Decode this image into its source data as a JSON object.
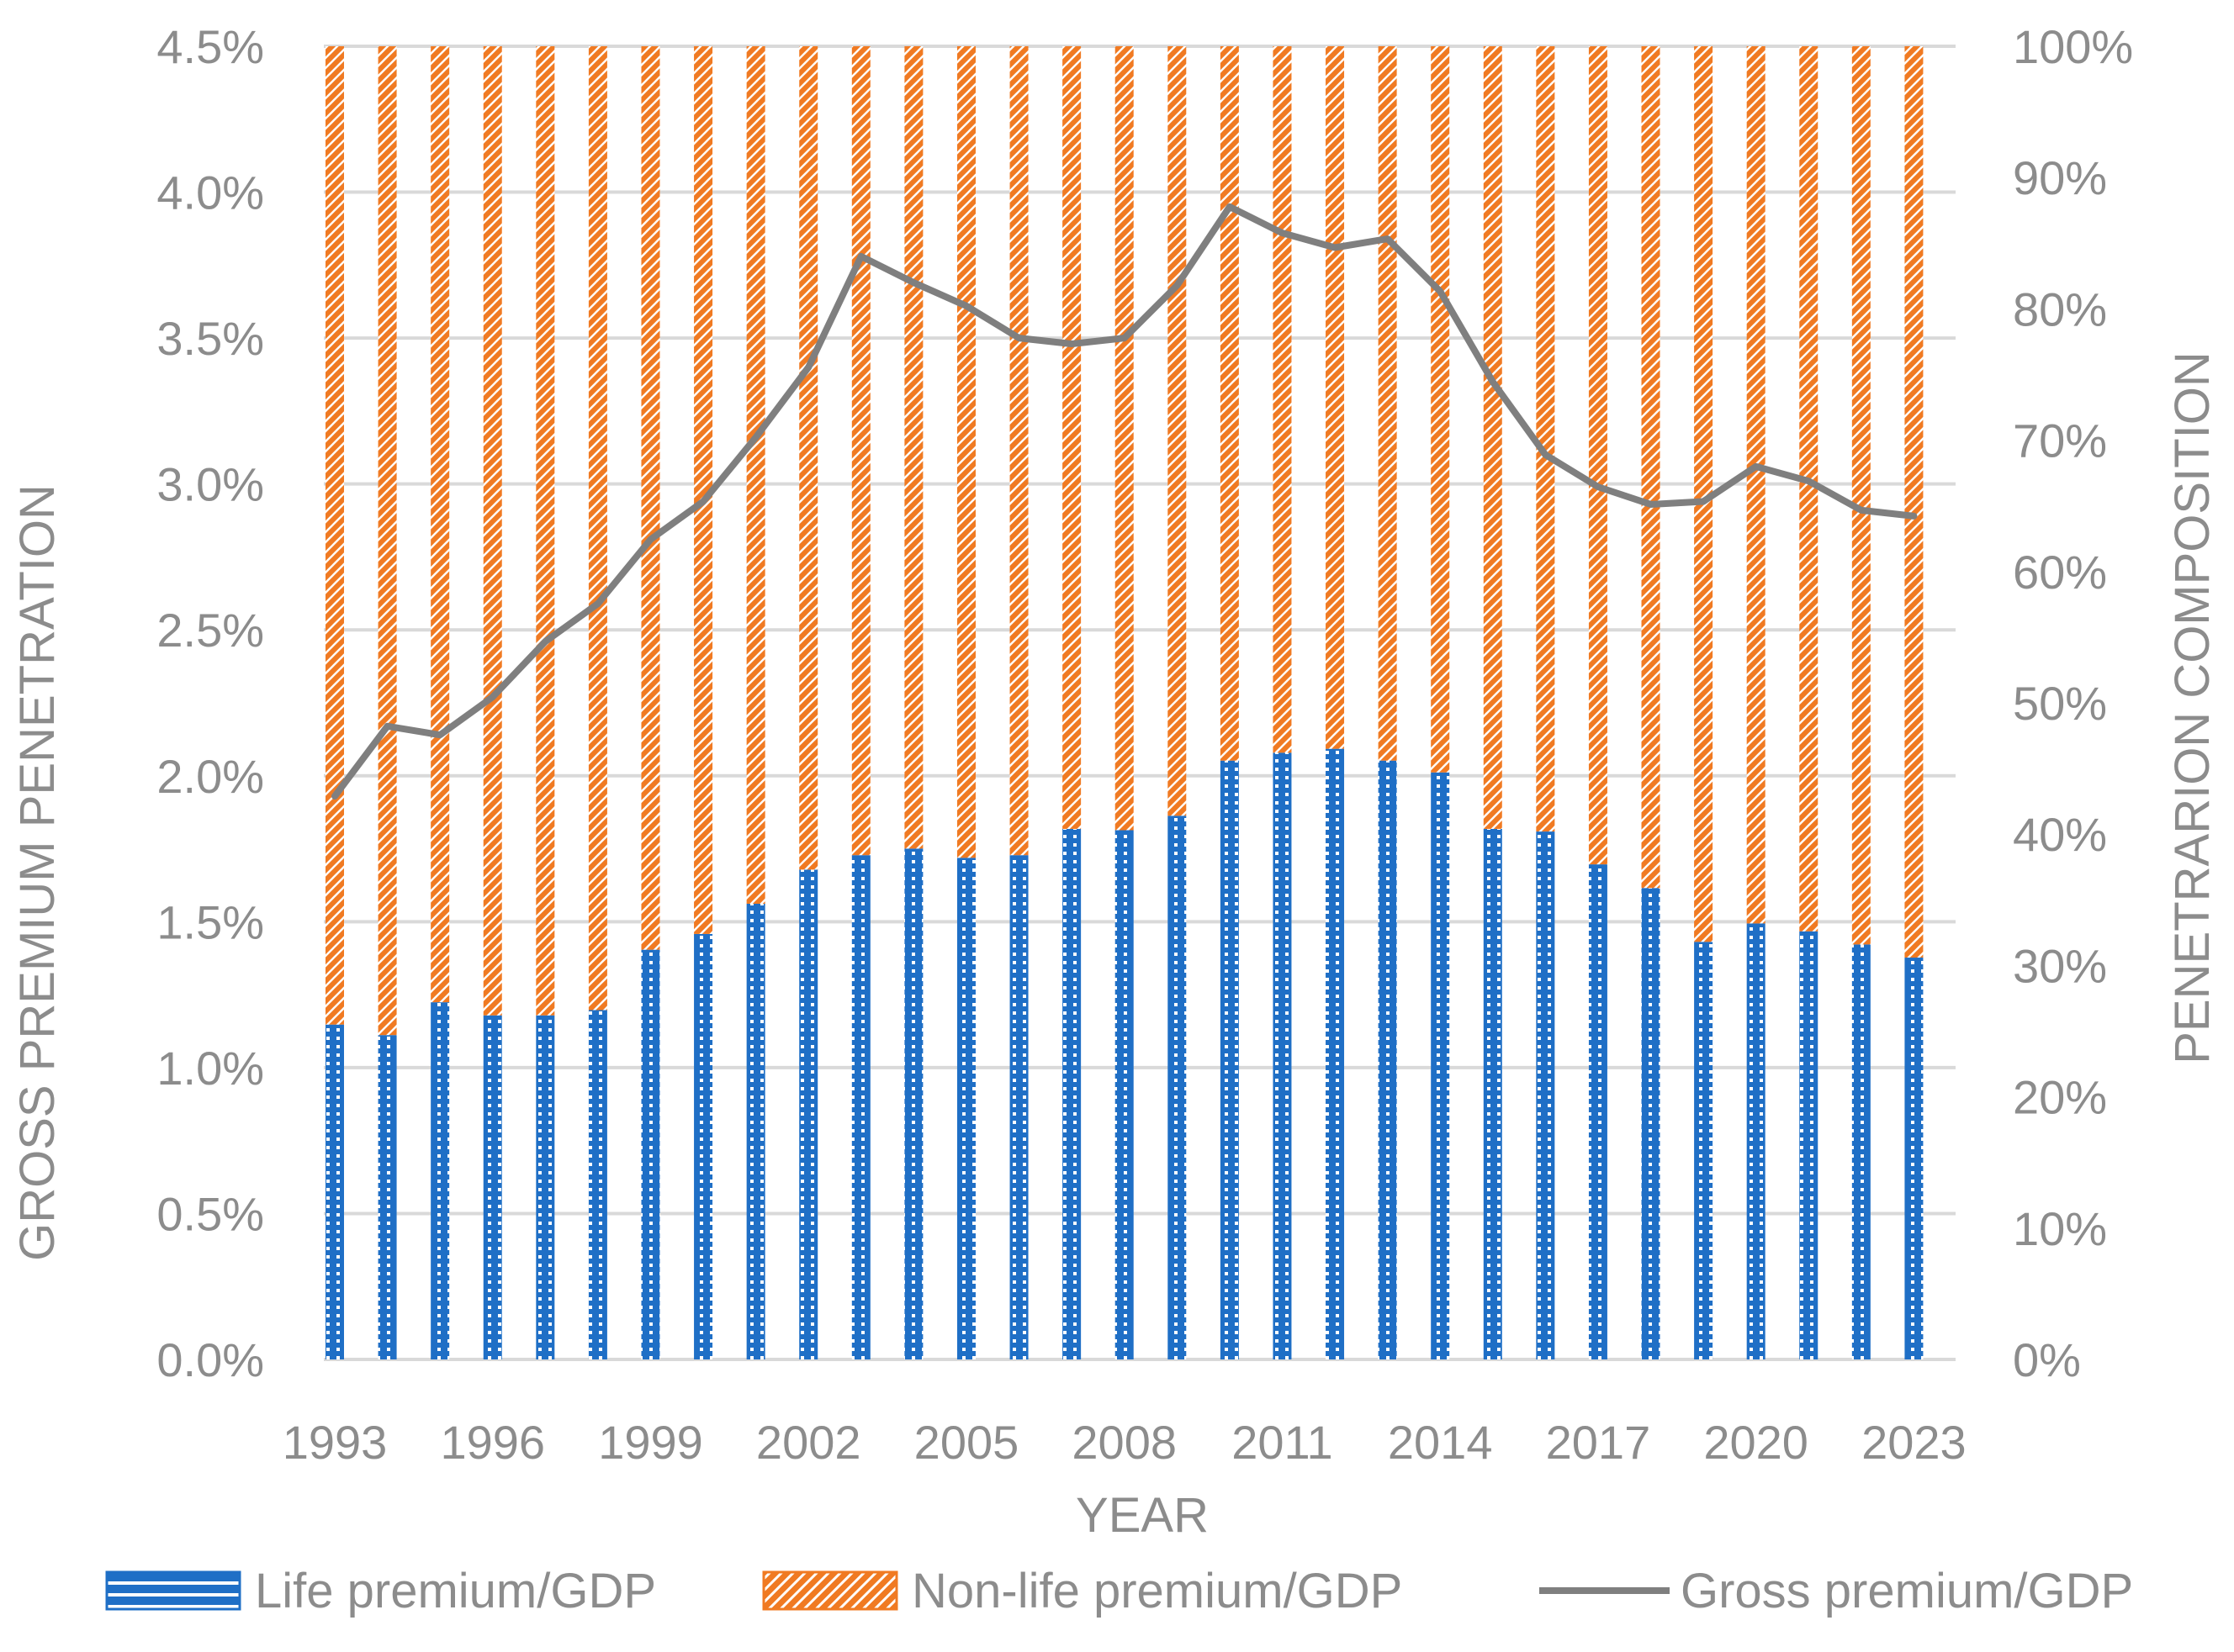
{
  "chart_data": {
    "type": "bar",
    "subtype": "stacked-100-percent-with-line",
    "years": [
      1993,
      1994,
      1995,
      1996,
      1997,
      1998,
      1999,
      2000,
      2001,
      2002,
      2003,
      2004,
      2005,
      2006,
      2007,
      2008,
      2009,
      2010,
      2011,
      2012,
      2013,
      2014,
      2015,
      2016,
      2017,
      2018,
      2019,
      2020,
      2021,
      2022,
      2023
    ],
    "series": [
      {
        "name": "Life premium/GDP",
        "axis": "right",
        "unit": "share of gross premium (%)",
        "values": [
          25.5,
          24.7,
          27.2,
          26.2,
          26.2,
          26.6,
          31.2,
          32.4,
          34.7,
          37.3,
          38.4,
          38.9,
          38.2,
          38.4,
          40.4,
          40.3,
          41.4,
          45.6,
          46.2,
          46.5,
          45.6,
          44.7,
          40.4,
          40.2,
          37.7,
          35.9,
          31.8,
          33.2,
          32.6,
          31.6,
          30.6
        ]
      },
      {
        "name": "Non-life premium/GDP",
        "axis": "right",
        "unit": "share of gross premium (%)",
        "values": [
          74.5,
          75.3,
          72.8,
          73.8,
          73.8,
          73.4,
          68.8,
          67.6,
          65.3,
          62.7,
          61.6,
          61.1,
          61.8,
          61.6,
          59.6,
          59.7,
          58.6,
          54.4,
          53.8,
          53.5,
          54.4,
          55.3,
          59.6,
          59.8,
          62.3,
          64.1,
          68.2,
          66.8,
          67.4,
          68.4,
          69.4
        ]
      },
      {
        "name": "Gross premium/GDP",
        "axis": "left",
        "type": "line",
        "values": [
          1.93,
          2.17,
          2.14,
          2.27,
          2.46,
          2.59,
          2.81,
          2.94,
          3.16,
          3.4,
          3.78,
          3.69,
          3.61,
          3.5,
          3.48,
          3.5,
          3.68,
          3.95,
          3.86,
          3.81,
          3.84,
          3.66,
          3.35,
          3.1,
          2.99,
          2.93,
          2.94,
          3.06,
          3.01,
          2.91,
          2.89
        ]
      }
    ],
    "xlabel": "YEAR",
    "ylabel_left": "GROSS PREMIUM PENETRATION",
    "ylabel_right": "PENETRARION COMPOSITION",
    "ylim_left": [
      0,
      4.5
    ],
    "ylim_right": [
      0,
      100
    ],
    "yticks_left": [
      "0.0%",
      "0.5%",
      "1.0%",
      "1.5%",
      "2.0%",
      "2.5%",
      "3.0%",
      "3.5%",
      "4.0%",
      "4.5%"
    ],
    "yticks_right": [
      "0%",
      "10%",
      "20%",
      "30%",
      "40%",
      "50%",
      "60%",
      "70%",
      "80%",
      "90%",
      "100%"
    ],
    "xtick_labels": [
      "1993",
      "1996",
      "1999",
      "2002",
      "2005",
      "2008",
      "2011",
      "2014",
      "2017",
      "2020",
      "2023"
    ],
    "grid": true,
    "legend": [
      "Life premium/GDP",
      "Non-life premium/GDP",
      "Gross premium/GDP"
    ],
    "colors": {
      "life": "#1f6fc6",
      "nonlife": "#f07a22",
      "gross": "#7f7f7f",
      "grid": "#d9d9d9",
      "text": "#8c8c8c"
    }
  }
}
